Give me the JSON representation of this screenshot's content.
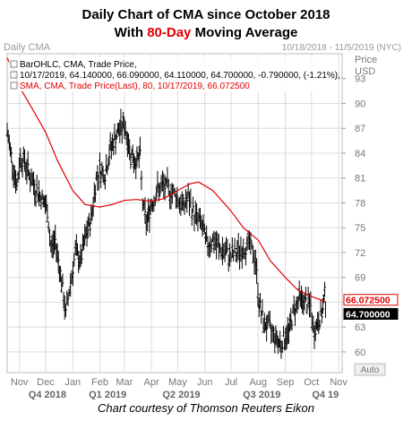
{
  "title_line1": "Daily Chart of CMA since October 2018",
  "title_line2_prefix": "With ",
  "title_line2_highlight": "80-Day",
  "title_line2_suffix": " Moving Average",
  "footer": "Chart courtesy of Thomson Reuters Eikon",
  "colors": {
    "price": "#000000",
    "sma": "#e00000",
    "grid": "#dcdcdc",
    "axis_text": "#777777",
    "bg": "#ffffff",
    "quarter_text": "#666666"
  },
  "chart_data": {
    "type": "bar-ohlc-with-line",
    "panel_label": "Daily CMA",
    "date_range": "10/18/2018 - 11/5/2019 (NYC)",
    "y_axis_title": [
      "Price",
      "USD"
    ],
    "ylim": [
      57.5,
      96
    ],
    "ytick_values": [
      60,
      63,
      66,
      69,
      72,
      75,
      78,
      81,
      84,
      87,
      90,
      93
    ],
    "y_scale_label": "Auto",
    "month_labels": [
      "Nov",
      "Dec",
      "Jan",
      "Feb",
      "Mar",
      "Apr",
      "May",
      "Jun",
      "Jul",
      "Aug",
      "Sep",
      "Oct",
      "Nov"
    ],
    "quarter_labels": [
      "Q4 2018",
      "Q1 2019",
      "Q2 2019",
      "Q3 2019",
      "Q4 19"
    ],
    "legend": [
      {
        "text": "BarOHLC, CMA, Trade Price,",
        "color": "#000000"
      },
      {
        "text": "10/17/2019, 64.140000, 66.090000, 64.110000, 64.700000, -0.790000, (-1.21%),",
        "color": "#000000"
      },
      {
        "text": "SMA, CMA, Trade Price(Last), 80, 10/17/2019, 66.072500",
        "color": "#e00000"
      }
    ],
    "last_value_tags": [
      {
        "label": "66.072500",
        "value": 66.0725,
        "series": "sma"
      },
      {
        "label": "64.700000",
        "value": 64.7,
        "series": "price"
      }
    ],
    "series": [
      {
        "name": "CMA",
        "kind": "ohlc-close-path",
        "points": [
          [
            "2018-10-18",
            86.5
          ],
          [
            "2018-10-24",
            83.0
          ],
          [
            "2018-10-29",
            80.0
          ],
          [
            "2018-11-02",
            83.5
          ],
          [
            "2018-11-07",
            83.0
          ],
          [
            "2018-11-12",
            81.5
          ],
          [
            "2018-11-16",
            80.5
          ],
          [
            "2018-11-21",
            79.5
          ],
          [
            "2018-11-27",
            78.5
          ],
          [
            "2018-12-03",
            77.0
          ],
          [
            "2018-12-07",
            72.5
          ],
          [
            "2018-12-12",
            73.5
          ],
          [
            "2018-12-18",
            69.5
          ],
          [
            "2018-12-24",
            64.5
          ],
          [
            "2018-12-28",
            67.5
          ],
          [
            "2019-01-04",
            72.0
          ],
          [
            "2019-01-10",
            71.0
          ],
          [
            "2019-01-16",
            74.0
          ],
          [
            "2019-01-22",
            76.0
          ],
          [
            "2019-01-28",
            81.0
          ],
          [
            "2019-02-01",
            82.0
          ],
          [
            "2019-02-07",
            81.5
          ],
          [
            "2019-02-13",
            84.5
          ],
          [
            "2019-02-19",
            86.0
          ],
          [
            "2019-02-25",
            87.0
          ],
          [
            "2019-03-01",
            87.5
          ],
          [
            "2019-03-07",
            84.5
          ],
          [
            "2019-03-13",
            83.0
          ],
          [
            "2019-03-19",
            83.5
          ],
          [
            "2019-03-22",
            78.0
          ],
          [
            "2019-03-26",
            75.5
          ],
          [
            "2019-04-01",
            78.0
          ],
          [
            "2019-04-08",
            79.5
          ],
          [
            "2019-04-15",
            80.0
          ],
          [
            "2019-04-22",
            79.5
          ],
          [
            "2019-04-29",
            79.0
          ],
          [
            "2019-05-06",
            77.5
          ],
          [
            "2019-05-13",
            78.5
          ],
          [
            "2019-05-20",
            76.5
          ],
          [
            "2019-05-28",
            75.5
          ],
          [
            "2019-06-03",
            73.0
          ],
          [
            "2019-06-10",
            73.5
          ],
          [
            "2019-06-17",
            72.5
          ],
          [
            "2019-06-24",
            72.0
          ],
          [
            "2019-07-01",
            71.5
          ],
          [
            "2019-07-08",
            72.0
          ],
          [
            "2019-07-15",
            72.5
          ],
          [
            "2019-07-22",
            73.0
          ],
          [
            "2019-07-29",
            71.0
          ],
          [
            "2019-08-02",
            66.0
          ],
          [
            "2019-08-07",
            63.5
          ],
          [
            "2019-08-13",
            63.0
          ],
          [
            "2019-08-20",
            62.0
          ],
          [
            "2019-08-26",
            61.0
          ],
          [
            "2019-08-30",
            61.5
          ],
          [
            "2019-09-05",
            62.5
          ],
          [
            "2019-09-11",
            65.0
          ],
          [
            "2019-09-17",
            66.5
          ],
          [
            "2019-09-23",
            66.0
          ],
          [
            "2019-09-30",
            65.5
          ],
          [
            "2019-10-03",
            62.5
          ],
          [
            "2019-10-08",
            63.5
          ],
          [
            "2019-10-14",
            65.0
          ],
          [
            "2019-10-16",
            67.0
          ],
          [
            "2019-10-17",
            64.7
          ]
        ]
      },
      {
        "name": "SMA 80",
        "kind": "line",
        "points": [
          [
            "2018-10-18",
            95.5
          ],
          [
            "2018-10-25",
            94.0
          ],
          [
            "2018-11-01",
            92.0
          ],
          [
            "2018-11-15",
            89.5
          ],
          [
            "2018-12-01",
            86.5
          ],
          [
            "2018-12-15",
            83.0
          ],
          [
            "2019-01-01",
            79.5
          ],
          [
            "2019-01-15",
            77.8
          ],
          [
            "2019-02-01",
            77.5
          ],
          [
            "2019-02-15",
            77.8
          ],
          [
            "2019-03-01",
            78.3
          ],
          [
            "2019-03-15",
            78.4
          ],
          [
            "2019-04-01",
            78.2
          ],
          [
            "2019-04-15",
            78.5
          ],
          [
            "2019-05-01",
            79.5
          ],
          [
            "2019-05-15",
            80.3
          ],
          [
            "2019-05-25",
            80.5
          ],
          [
            "2019-06-10",
            79.5
          ],
          [
            "2019-07-01",
            77.0
          ],
          [
            "2019-07-15",
            75.0
          ],
          [
            "2019-08-01",
            73.5
          ],
          [
            "2019-08-15",
            71.0
          ],
          [
            "2019-09-01",
            69.0
          ],
          [
            "2019-09-15",
            67.5
          ],
          [
            "2019-10-01",
            66.7
          ],
          [
            "2019-10-17",
            66.07
          ]
        ]
      }
    ]
  }
}
